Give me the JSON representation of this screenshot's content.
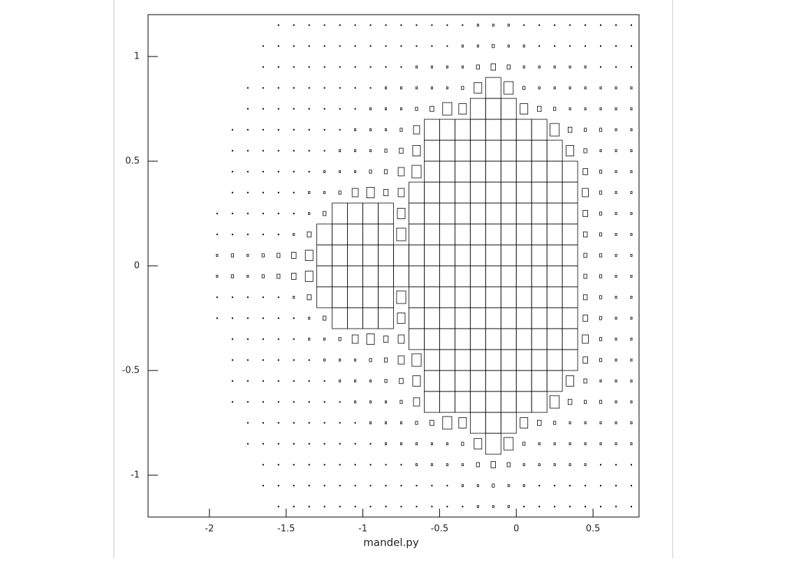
{
  "chart_data": {
    "type": "box2d",
    "xlabel": "mandel.py",
    "color": "#000000",
    "xlim": [
      -2.4,
      0.8
    ],
    "ylim": [
      -1.2,
      1.2
    ],
    "xticks": [
      -2,
      -1.5,
      -1,
      -0.5,
      0,
      0.5
    ],
    "yticks": [
      -1,
      -0.5,
      0,
      0.5,
      1
    ],
    "xbins": [
      -2.4,
      -2.3,
      -2.2,
      -2.1,
      -2.0,
      -1.9,
      -1.8,
      -1.7,
      -1.6,
      -1.5,
      -1.4,
      -1.3,
      -1.2,
      -1.1,
      -1.0,
      -0.9,
      -0.8,
      -0.7,
      -0.6,
      -0.5,
      -0.4,
      -0.3,
      -0.2,
      -0.1,
      0.0,
      0.1,
      0.2,
      0.3,
      0.4,
      0.5,
      0.6,
      0.7,
      0.8
    ],
    "ybins": [
      -1.2,
      -1.1,
      -1.0,
      -0.9,
      -0.8,
      -0.7,
      -0.6,
      -0.5,
      -0.4,
      -0.3,
      -0.2,
      -0.1,
      0.0,
      0.1,
      0.2,
      0.3,
      0.4,
      0.5,
      0.6,
      0.7,
      0.8,
      0.9,
      1.0,
      1.1,
      1.2
    ],
    "values": [
      [
        0,
        0,
        0,
        0,
        0,
        0,
        0,
        0,
        1,
        1,
        1,
        1,
        1,
        1,
        1,
        1,
        1,
        1,
        1,
        1,
        1,
        2,
        2,
        2,
        1,
        1,
        1,
        1,
        1,
        1,
        1,
        1
      ],
      [
        0,
        0,
        0,
        0,
        0,
        0,
        0,
        1,
        1,
        1,
        1,
        1,
        1,
        1,
        1,
        1,
        1,
        1,
        1,
        1,
        2,
        2,
        3,
        2,
        2,
        1,
        1,
        1,
        1,
        1,
        1,
        1
      ],
      [
        0,
        0,
        0,
        0,
        0,
        0,
        0,
        1,
        1,
        1,
        1,
        1,
        1,
        1,
        1,
        1,
        1,
        2,
        2,
        2,
        2,
        4,
        6,
        4,
        2,
        2,
        2,
        2,
        2,
        1,
        1,
        1
      ],
      [
        0,
        0,
        0,
        0,
        0,
        0,
        1,
        1,
        1,
        1,
        1,
        1,
        1,
        1,
        1,
        2,
        2,
        2,
        2,
        2,
        3,
        10,
        20,
        12,
        3,
        2,
        2,
        2,
        2,
        2,
        2,
        2
      ],
      [
        0,
        0,
        0,
        0,
        0,
        0,
        1,
        1,
        1,
        1,
        1,
        1,
        1,
        1,
        2,
        2,
        2,
        3,
        5,
        12,
        10,
        20,
        20,
        20,
        10,
        5,
        3,
        2,
        2,
        2,
        2,
        2
      ],
      [
        0,
        0,
        0,
        0,
        0,
        1,
        1,
        1,
        1,
        1,
        1,
        1,
        1,
        2,
        2,
        2,
        3,
        8,
        20,
        20,
        20,
        20,
        20,
        20,
        20,
        20,
        12,
        5,
        3,
        3,
        2,
        2
      ],
      [
        0,
        0,
        0,
        0,
        0,
        1,
        1,
        1,
        1,
        1,
        1,
        1,
        2,
        2,
        2,
        3,
        5,
        10,
        20,
        20,
        20,
        20,
        20,
        20,
        20,
        20,
        20,
        10,
        4,
        2,
        2,
        2
      ],
      [
        0,
        0,
        0,
        0,
        0,
        1,
        1,
        1,
        1,
        1,
        1,
        2,
        2,
        2,
        3,
        4,
        8,
        12,
        20,
        20,
        20,
        20,
        20,
        20,
        20,
        20,
        20,
        20,
        6,
        3,
        2,
        2
      ],
      [
        0,
        0,
        0,
        0,
        0,
        1,
        1,
        1,
        1,
        1,
        2,
        2,
        3,
        8,
        10,
        6,
        8,
        20,
        20,
        20,
        20,
        20,
        20,
        20,
        20,
        20,
        20,
        20,
        8,
        3,
        2,
        2
      ],
      [
        0,
        0,
        0,
        0,
        1,
        1,
        1,
        1,
        1,
        1,
        2,
        4,
        20,
        20,
        20,
        20,
        10,
        20,
        20,
        20,
        20,
        20,
        20,
        20,
        20,
        20,
        20,
        20,
        6,
        3,
        2,
        2
      ],
      [
        0,
        0,
        0,
        0,
        1,
        1,
        1,
        1,
        1,
        2,
        5,
        20,
        20,
        20,
        20,
        20,
        12,
        20,
        20,
        20,
        20,
        20,
        20,
        20,
        20,
        20,
        20,
        20,
        5,
        3,
        2,
        2
      ],
      [
        0,
        0,
        0,
        0,
        2,
        3,
        2,
        3,
        4,
        6,
        10,
        20,
        20,
        20,
        20,
        20,
        20,
        20,
        20,
        20,
        20,
        20,
        20,
        20,
        20,
        20,
        20,
        20,
        4,
        3,
        2,
        2
      ],
      [
        0,
        0,
        0,
        0,
        2,
        3,
        2,
        3,
        4,
        6,
        10,
        20,
        20,
        20,
        20,
        20,
        20,
        20,
        20,
        20,
        20,
        20,
        20,
        20,
        20,
        20,
        20,
        20,
        4,
        3,
        2,
        2
      ],
      [
        0,
        0,
        0,
        0,
        1,
        1,
        1,
        1,
        1,
        2,
        5,
        20,
        20,
        20,
        20,
        20,
        12,
        20,
        20,
        20,
        20,
        20,
        20,
        20,
        20,
        20,
        20,
        20,
        5,
        3,
        2,
        2
      ],
      [
        0,
        0,
        0,
        0,
        1,
        1,
        1,
        1,
        1,
        1,
        2,
        4,
        20,
        20,
        20,
        20,
        10,
        20,
        20,
        20,
        20,
        20,
        20,
        20,
        20,
        20,
        20,
        20,
        6,
        3,
        2,
        2
      ],
      [
        0,
        0,
        0,
        0,
        0,
        1,
        1,
        1,
        1,
        1,
        2,
        2,
        3,
        8,
        10,
        6,
        8,
        20,
        20,
        20,
        20,
        20,
        20,
        20,
        20,
        20,
        20,
        20,
        8,
        3,
        2,
        2
      ],
      [
        0,
        0,
        0,
        0,
        0,
        1,
        1,
        1,
        1,
        1,
        1,
        2,
        2,
        2,
        3,
        4,
        8,
        12,
        20,
        20,
        20,
        20,
        20,
        20,
        20,
        20,
        20,
        20,
        6,
        3,
        2,
        2
      ],
      [
        0,
        0,
        0,
        0,
        0,
        1,
        1,
        1,
        1,
        1,
        1,
        1,
        2,
        2,
        2,
        3,
        5,
        10,
        20,
        20,
        20,
        20,
        20,
        20,
        20,
        20,
        20,
        10,
        4,
        2,
        2,
        2
      ],
      [
        0,
        0,
        0,
        0,
        0,
        1,
        1,
        1,
        1,
        1,
        1,
        1,
        1,
        2,
        2,
        2,
        3,
        8,
        20,
        20,
        20,
        20,
        20,
        20,
        20,
        20,
        12,
        5,
        3,
        3,
        2,
        2
      ],
      [
        0,
        0,
        0,
        0,
        0,
        0,
        1,
        1,
        1,
        1,
        1,
        1,
        1,
        1,
        2,
        2,
        2,
        3,
        5,
        12,
        10,
        20,
        20,
        20,
        10,
        5,
        3,
        2,
        2,
        2,
        2,
        2
      ],
      [
        0,
        0,
        0,
        0,
        0,
        0,
        1,
        1,
        1,
        1,
        1,
        1,
        1,
        1,
        1,
        2,
        2,
        2,
        2,
        2,
        3,
        10,
        20,
        12,
        3,
        2,
        2,
        2,
        2,
        2,
        2,
        2
      ],
      [
        0,
        0,
        0,
        0,
        0,
        0,
        0,
        1,
        1,
        1,
        1,
        1,
        1,
        1,
        1,
        1,
        1,
        2,
        2,
        2,
        2,
        4,
        6,
        4,
        2,
        2,
        2,
        2,
        2,
        1,
        1,
        1
      ],
      [
        0,
        0,
        0,
        0,
        0,
        0,
        0,
        1,
        1,
        1,
        1,
        1,
        1,
        1,
        1,
        1,
        1,
        1,
        1,
        1,
        2,
        2,
        3,
        2,
        2,
        1,
        1,
        1,
        1,
        1,
        1,
        1
      ],
      [
        0,
        0,
        0,
        0,
        0,
        0,
        0,
        0,
        1,
        1,
        1,
        1,
        1,
        1,
        1,
        1,
        1,
        1,
        1,
        1,
        1,
        2,
        2,
        2,
        1,
        1,
        1,
        1,
        1,
        1,
        1,
        1
      ]
    ]
  }
}
